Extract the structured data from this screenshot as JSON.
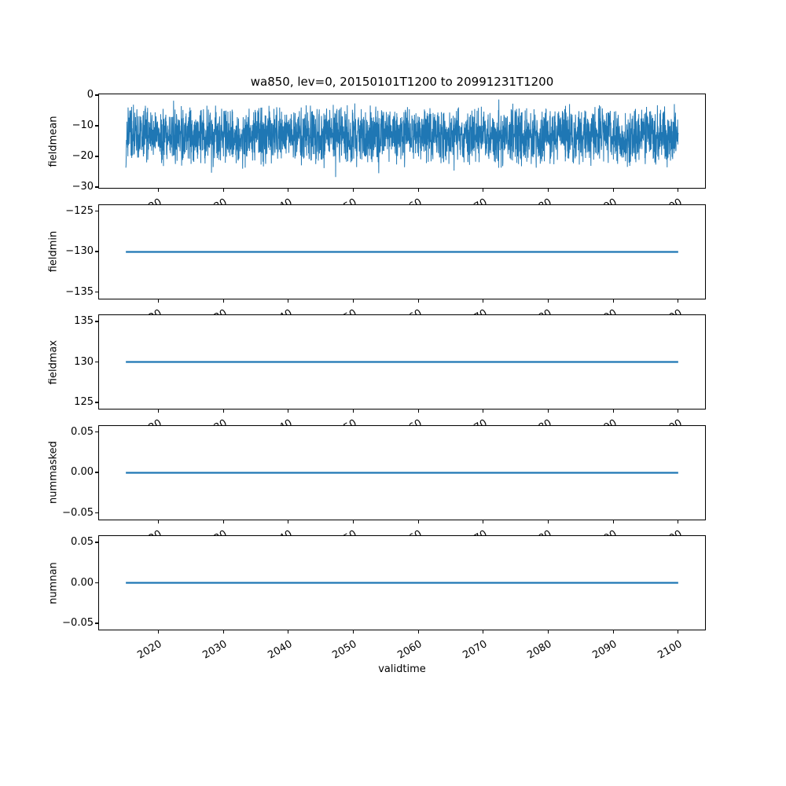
{
  "title": "wa850, lev=0, 20150101T1200 to 20991231T1200",
  "xlabel": "validtime",
  "x_tick_labels": [
    "2020",
    "2030",
    "2040",
    "2050",
    "2060",
    "2070",
    "2080",
    "2090",
    "2100"
  ],
  "line_color": "#1f77b4",
  "chart_data": [
    {
      "type": "line",
      "name": "fieldmean",
      "ylabel": "fieldmean",
      "yticks": [
        0,
        -10,
        -20,
        -30
      ],
      "ytick_labels": [
        "0",
        "−10",
        "−20",
        "−30"
      ],
      "ylim": [
        -31,
        0.5
      ],
      "x_range_years": [
        2015,
        2100
      ],
      "series": "dense noisy time series; solid band about -8 to -19, frequent spikes to -4/-25, extremes near 0 and -30.6",
      "noise_params": {
        "n": 3000,
        "center": -13.5,
        "half_width": 11,
        "spike_prob": 0.03,
        "min": -30.6,
        "max": -0.3,
        "seed": 20150101
      }
    },
    {
      "type": "line",
      "name": "fieldmin",
      "ylabel": "fieldmin",
      "yticks": [
        -125,
        -130,
        -135
      ],
      "ytick_labels": [
        "−125",
        "−130",
        "−135"
      ],
      "constant_value": -130,
      "x_range_years": [
        2015,
        2100
      ]
    },
    {
      "type": "line",
      "name": "fieldmax",
      "ylabel": "fieldmax",
      "yticks": [
        135,
        130,
        125
      ],
      "ytick_labels": [
        "135",
        "130",
        "125"
      ],
      "constant_value": 130,
      "x_range_years": [
        2015,
        2100
      ]
    },
    {
      "type": "line",
      "name": "nummasked",
      "ylabel": "nummasked",
      "yticks": [
        0.05,
        0.0,
        -0.05
      ],
      "ytick_labels": [
        "0.05",
        "0.00",
        "−0.05"
      ],
      "constant_value": 0,
      "x_range_years": [
        2015,
        2100
      ]
    },
    {
      "type": "line",
      "name": "numnan",
      "ylabel": "numnan",
      "yticks": [
        0.05,
        0.0,
        -0.05
      ],
      "ytick_labels": [
        "0.05",
        "0.00",
        "−0.05"
      ],
      "constant_value": 0,
      "x_range_years": [
        2015,
        2100
      ]
    }
  ]
}
